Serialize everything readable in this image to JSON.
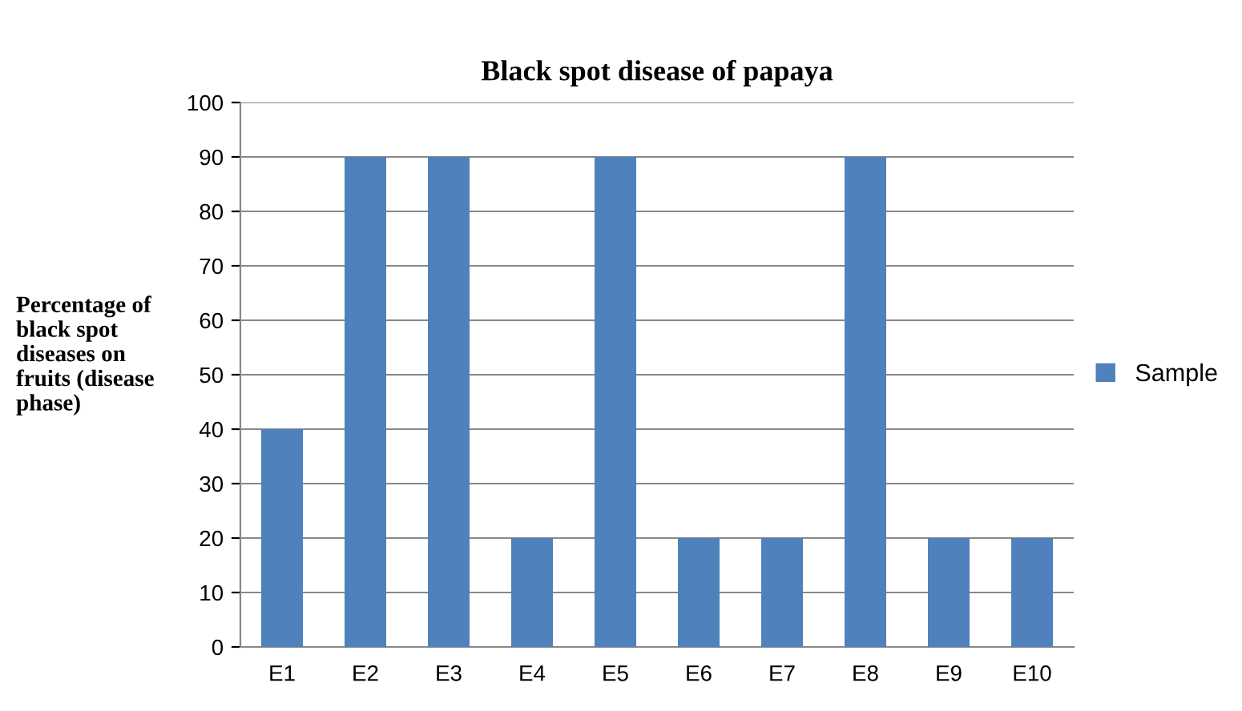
{
  "chart_data": {
    "type": "bar",
    "title": "Black spot disease of papaya",
    "ylabel": "Percentage of\nblack spot\ndiseases on\nfruits (disease\nphase)",
    "categories": [
      "E1",
      "E2",
      "E3",
      "E4",
      "E5",
      "E6",
      "E7",
      "E8",
      "E9",
      "E10"
    ],
    "series": [
      {
        "name": "Sample",
        "color": "#4f81bd",
        "values": [
          40,
          90,
          90,
          20,
          90,
          20,
          20,
          90,
          20,
          20
        ]
      }
    ],
    "ylim": [
      0,
      100
    ],
    "yticks": [
      0,
      10,
      20,
      30,
      40,
      50,
      60,
      70,
      80,
      90,
      100
    ],
    "grid": "y",
    "legend": "right"
  }
}
